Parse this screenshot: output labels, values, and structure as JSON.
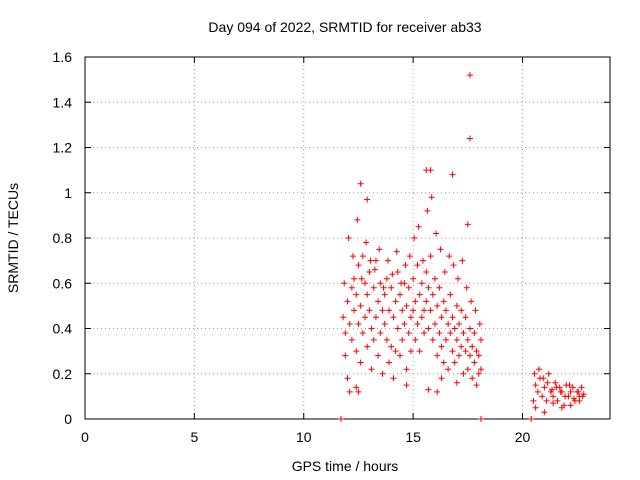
{
  "chart_data": {
    "type": "scatter",
    "title": "Day 094 of 2022, SRMTID for receiver ab33",
    "xlabel": "GPS time / hours",
    "ylabel": "SRMTID / TECUs",
    "xlim": [
      0,
      24
    ],
    "ylim": [
      0,
      1.6
    ],
    "xticks": [
      0,
      5,
      10,
      15,
      20
    ],
    "xtick_labels": [
      "0",
      "5",
      "10",
      "15",
      "20"
    ],
    "yticks": [
      0,
      0.2,
      0.4,
      0.6,
      0.8,
      1.0,
      1.2,
      1.4,
      1.6
    ],
    "ytick_labels": [
      "0",
      "0.2",
      "0.4",
      "0.6",
      "0.8",
      "1",
      "1.2",
      "1.4",
      "1.6"
    ],
    "grid": true,
    "marker": "+",
    "color": "#ff0000",
    "series": [
      {
        "name": "SRMTID",
        "x": [
          11.8,
          11.9,
          11.9,
          12.0,
          12.0,
          12.1,
          12.1,
          12.2,
          12.2,
          12.3,
          12.3,
          12.4,
          12.4,
          12.5,
          12.5,
          12.6,
          12.6,
          12.7,
          12.7,
          12.8,
          12.8,
          12.9,
          12.9,
          13.0,
          13.0,
          13.1,
          13.1,
          13.2,
          13.2,
          13.3,
          13.3,
          13.4,
          13.4,
          13.5,
          13.5,
          13.6,
          13.6,
          13.7,
          13.7,
          13.8,
          13.8,
          13.9,
          13.9,
          14.0,
          14.0,
          14.1,
          14.1,
          14.2,
          14.2,
          14.3,
          14.3,
          14.4,
          14.4,
          14.5,
          14.5,
          14.6,
          14.6,
          14.7,
          14.7,
          14.8,
          14.8,
          14.9,
          14.9,
          15.0,
          15.0,
          15.1,
          15.1,
          15.2,
          15.2,
          15.3,
          15.3,
          15.4,
          15.4,
          15.5,
          15.5,
          15.6,
          15.6,
          15.7,
          15.7,
          15.8,
          15.8,
          15.9,
          15.9,
          16.0,
          16.0,
          16.1,
          16.1,
          16.2,
          16.2,
          16.3,
          16.3,
          16.4,
          16.4,
          16.5,
          16.5,
          16.6,
          16.6,
          16.7,
          16.7,
          16.8,
          16.8,
          16.9,
          16.9,
          17.0,
          17.0,
          17.1,
          17.1,
          17.2,
          17.2,
          17.3,
          17.3,
          17.4,
          17.4,
          17.5,
          17.5,
          17.6,
          17.6,
          17.7,
          17.7,
          17.8,
          17.8,
          17.9,
          17.9,
          18.0,
          18.0,
          18.1,
          18.1,
          11.85,
          12.05,
          12.25,
          12.45,
          12.65,
          12.85,
          13.05,
          13.25,
          13.45,
          13.65,
          13.85,
          14.05,
          14.25,
          14.45,
          14.65,
          14.85,
          15.05,
          15.25,
          15.45,
          15.65,
          15.85,
          16.05,
          16.25,
          16.45,
          16.65,
          16.85,
          17.05,
          17.25,
          17.45,
          17.65,
          17.85,
          18.05,
          12.6,
          12.9,
          15.6,
          15.8,
          16.8,
          17.5,
          17.6,
          17.6,
          12.4,
          12.5,
          14.7,
          15.7,
          16.1,
          16.3,
          17.0,
          11.7,
          18.1,
          20.5,
          20.6,
          20.7,
          20.8,
          20.9,
          21.0,
          21.1,
          21.2,
          21.3,
          21.4,
          21.5,
          21.6,
          21.7,
          21.8,
          21.9,
          22.0,
          22.1,
          22.2,
          22.3,
          22.4,
          22.5,
          22.6,
          22.7,
          22.8,
          20.55,
          20.75,
          20.95,
          21.15,
          21.35,
          21.55,
          21.75,
          21.95,
          22.15,
          22.35,
          22.55,
          22.75,
          20.6,
          21.0,
          21.4,
          21.8,
          22.2,
          22.6,
          20.4
        ],
        "y": [
          0.45,
          0.38,
          0.28,
          0.52,
          0.18,
          0.42,
          0.12,
          0.58,
          0.35,
          0.48,
          0.62,
          0.55,
          0.3,
          0.68,
          0.42,
          0.5,
          0.25,
          0.72,
          0.38,
          0.6,
          0.45,
          0.55,
          0.32,
          0.65,
          0.48,
          0.4,
          0.22,
          0.58,
          0.35,
          0.7,
          0.45,
          0.52,
          0.28,
          0.6,
          0.38,
          0.48,
          0.2,
          0.55,
          0.42,
          0.35,
          0.62,
          0.48,
          0.25,
          0.58,
          0.32,
          0.45,
          0.18,
          0.52,
          0.3,
          0.4,
          0.65,
          0.55,
          0.28,
          0.48,
          0.35,
          0.6,
          0.42,
          0.5,
          0.22,
          0.58,
          0.38,
          0.45,
          0.3,
          0.62,
          0.48,
          0.52,
          0.35,
          0.68,
          0.42,
          0.55,
          0.3,
          0.6,
          0.45,
          0.48,
          0.38,
          0.65,
          0.52,
          0.58,
          0.4,
          0.72,
          0.48,
          0.55,
          0.35,
          0.62,
          0.42,
          0.5,
          0.28,
          0.58,
          0.38,
          0.45,
          0.32,
          0.52,
          0.25,
          0.48,
          0.35,
          0.42,
          0.22,
          0.55,
          0.38,
          0.45,
          0.3,
          0.4,
          0.25,
          0.5,
          0.35,
          0.42,
          0.28,
          0.48,
          0.32,
          0.38,
          0.2,
          0.45,
          0.3,
          0.35,
          0.22,
          0.4,
          0.28,
          0.32,
          0.18,
          0.38,
          0.25,
          0.3,
          0.15,
          0.28,
          0.2,
          0.35,
          0.22,
          0.6,
          0.8,
          0.72,
          0.88,
          0.62,
          0.78,
          0.7,
          0.66,
          0.75,
          0.58,
          0.7,
          0.64,
          0.74,
          0.6,
          0.68,
          0.72,
          0.8,
          0.85,
          0.7,
          0.92,
          0.98,
          0.82,
          0.75,
          0.65,
          0.72,
          0.68,
          0.62,
          0.7,
          0.58,
          0.52,
          0.48,
          0.42,
          1.04,
          0.97,
          1.1,
          1.1,
          1.08,
          0.86,
          1.24,
          1.52,
          0.14,
          0.12,
          0.15,
          0.13,
          0.12,
          0.18,
          0.16,
          0.0,
          0.0,
          0.08,
          0.15,
          0.12,
          0.18,
          0.1,
          0.14,
          0.08,
          0.2,
          0.12,
          0.1,
          0.16,
          0.08,
          0.14,
          0.12,
          0.06,
          0.15,
          0.1,
          0.12,
          0.14,
          0.08,
          0.12,
          0.1,
          0.14,
          0.11,
          0.2,
          0.22,
          0.18,
          0.16,
          0.13,
          0.14,
          0.12,
          0.1,
          0.15,
          0.09,
          0.12,
          0.1,
          0.05,
          0.03,
          0.07,
          0.05,
          0.06,
          0.08,
          0.0
        ]
      }
    ]
  }
}
